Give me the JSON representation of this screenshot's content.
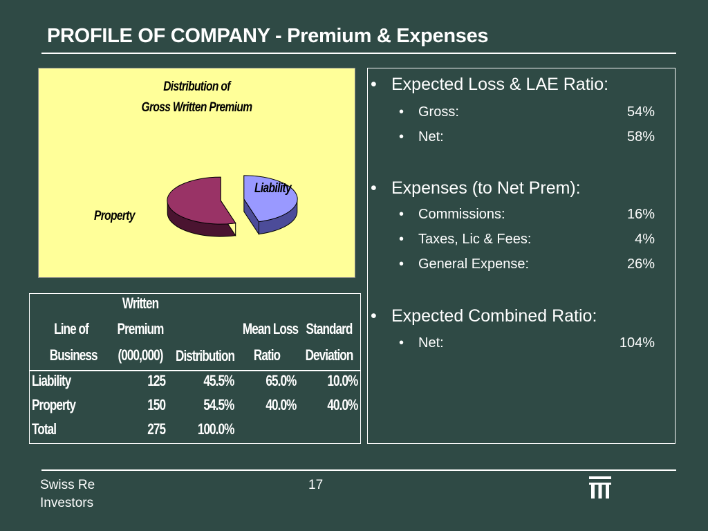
{
  "slide": {
    "title": "PROFILE OF COMPANY - Premium & Expenses",
    "page_number": "17",
    "footer_line1": "Swiss Re",
    "footer_line2": "Investors"
  },
  "colors": {
    "background": "#2f4a45",
    "chart_panel": "#ffff99",
    "liability_slice": "#9999ff",
    "property_slice": "#993366"
  },
  "chart_data": {
    "type": "pie",
    "title_line1": "Distribution of",
    "title_line2": "Gross Written Premium",
    "categories": [
      "Liability",
      "Property"
    ],
    "values": [
      45.5,
      54.5
    ]
  },
  "table": {
    "headers": {
      "line": [
        "Line of",
        "Business"
      ],
      "premium": [
        "Written",
        "Premium",
        "(000,000)"
      ],
      "distribution": "Distribution",
      "mean_loss": [
        "Mean Loss",
        "Ratio"
      ],
      "std_dev": [
        "Standard",
        "Deviation"
      ]
    },
    "rows": [
      {
        "name": "Liability",
        "premium": "125",
        "distribution": "45.5%",
        "mean_loss": "65.0%",
        "std_dev": "10.0%"
      },
      {
        "name": "Property",
        "premium": "150",
        "distribution": "54.5%",
        "mean_loss": "40.0%",
        "std_dev": "40.0%"
      },
      {
        "name": "Total",
        "premium": "275",
        "distribution": "100.0%",
        "mean_loss": "",
        "std_dev": ""
      }
    ]
  },
  "bullets": [
    {
      "heading": "Expected Loss & LAE Ratio:",
      "items": [
        {
          "label": "Gross:",
          "value": "54%"
        },
        {
          "label": "Net:",
          "value": "58%"
        }
      ]
    },
    {
      "heading": "Expenses (to Net Prem):",
      "items": [
        {
          "label": "Commissions:",
          "value": "16%"
        },
        {
          "label": "Taxes, Lic & Fees:",
          "value": "4%"
        },
        {
          "label": "General Expense:",
          "value": "26%"
        }
      ]
    },
    {
      "heading": "Expected Combined Ratio:",
      "items": [
        {
          "label": "Net:",
          "value": "104%"
        }
      ]
    }
  ]
}
